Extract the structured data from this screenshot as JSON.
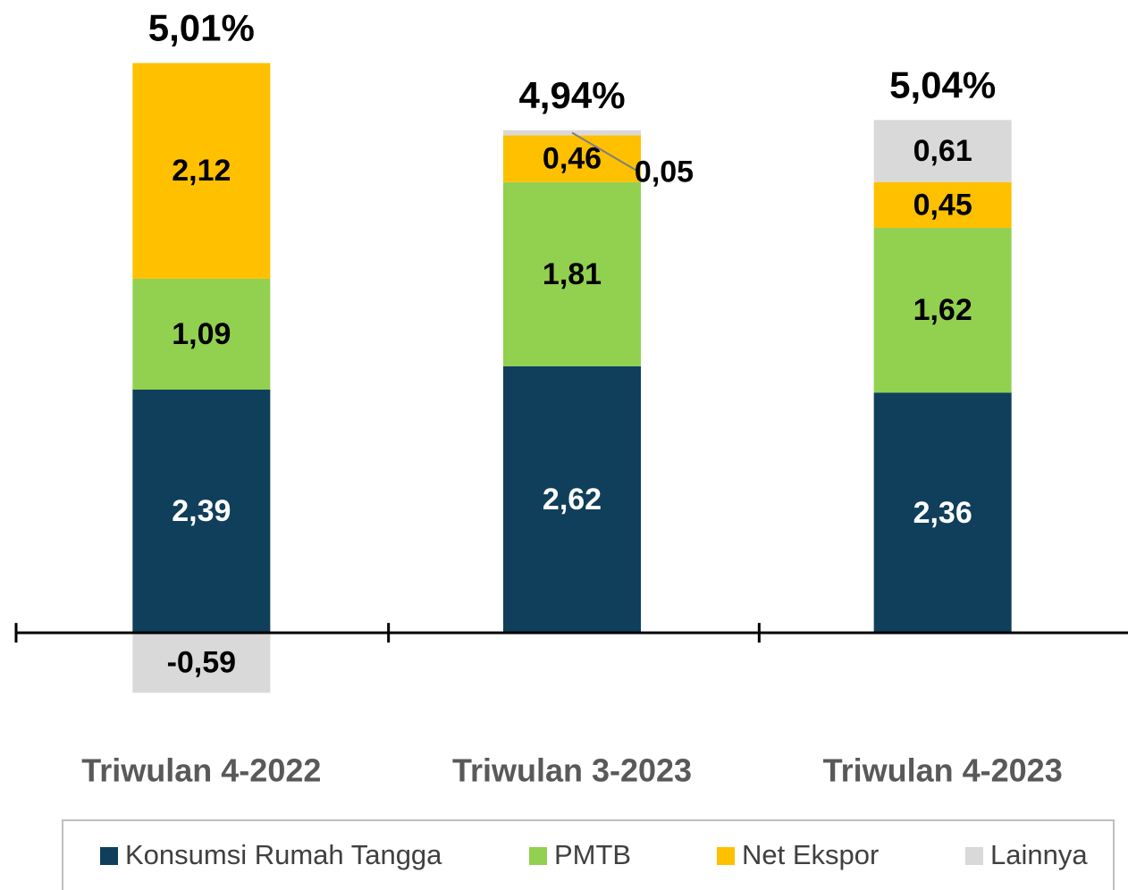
{
  "chart_data": {
    "type": "stacked_bar",
    "categories": [
      "Triwulan 4-2022",
      "Triwulan 3-2023",
      "Triwulan 4-2023"
    ],
    "series": [
      {
        "name": "Konsumsi Rumah Tangga",
        "color": "#0f3f5a",
        "values": [
          2.39,
          2.62,
          2.36
        ],
        "value_labels": [
          "2,39",
          "2,62",
          "2,36"
        ]
      },
      {
        "name": "PMTB",
        "color": "#92d050",
        "values": [
          1.09,
          1.81,
          1.62
        ],
        "value_labels": [
          "1,09",
          "1,81",
          "1,62"
        ]
      },
      {
        "name": "Net Ekspor",
        "color": "#ffc000",
        "values": [
          2.12,
          0.46,
          0.45
        ],
        "value_labels": [
          "2,12",
          "0,46",
          "0,45"
        ]
      },
      {
        "name": "Lainnya",
        "color": "#d9d9d9",
        "values": [
          -0.59,
          0.05,
          0.61
        ],
        "value_labels": [
          "-0,59",
          "0,05",
          "0,61"
        ]
      }
    ],
    "totals": [
      5.01,
      4.94,
      5.04
    ],
    "total_labels": [
      "5,01%",
      "4,94%",
      "5,04%"
    ],
    "ylim": [
      -1,
      6
    ],
    "legend": "bottom"
  }
}
